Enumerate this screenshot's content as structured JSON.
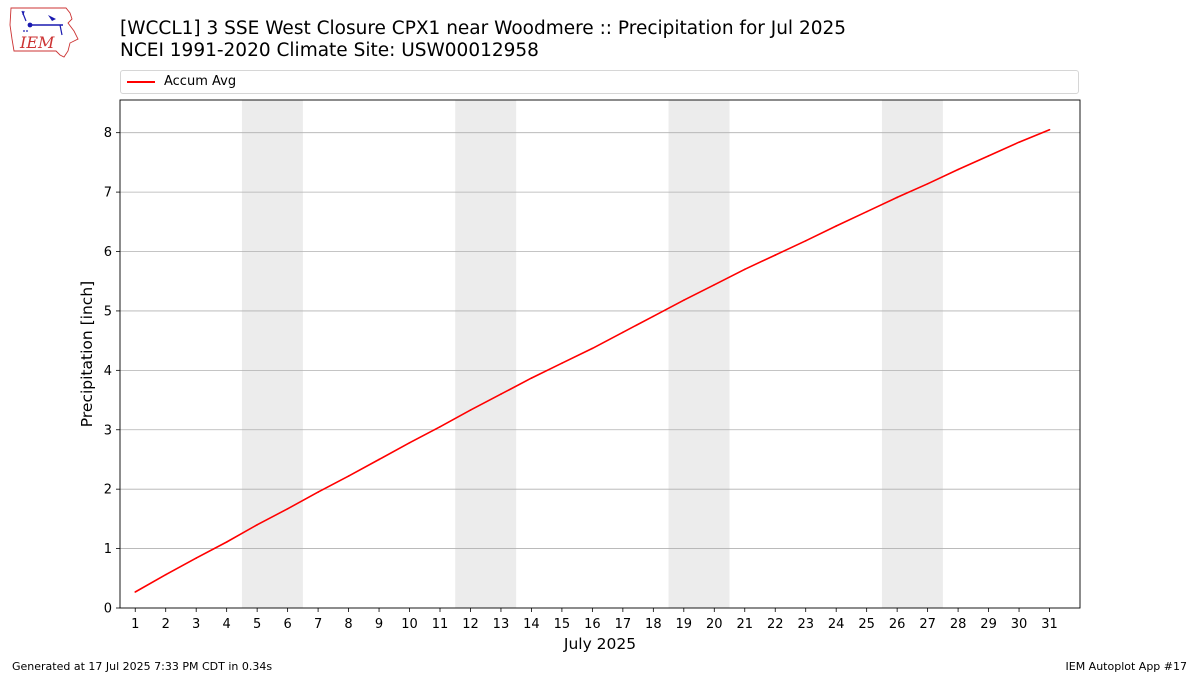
{
  "header": {
    "title_line1": "[WCCL1] 3 SSE West Closure CPX1 near Woodmere :: Precipitation for Jul 2025",
    "title_line2": "NCEI 1991-2020 Climate Site: USW00012958"
  },
  "logo": {
    "text": "IEM"
  },
  "footer": {
    "generated": "Generated at 17 Jul 2025 7:33 PM CDT in 0.34s",
    "app": "IEM Autoplot App #17"
  },
  "colors": {
    "series": "#ff0000",
    "weekend": "#ececec",
    "grid": "#b0b0b0",
    "logo": "#cc3333"
  },
  "chart_data": {
    "type": "line",
    "xlabel": "July 2025",
    "ylabel": "Precipitation [inch]",
    "xlim": [
      0.5,
      32.0
    ],
    "ylim": [
      0,
      8.55
    ],
    "yticks": [
      0,
      1,
      2,
      3,
      4,
      5,
      6,
      7,
      8
    ],
    "xticks": [
      1,
      2,
      3,
      4,
      5,
      6,
      7,
      8,
      9,
      10,
      11,
      12,
      13,
      14,
      15,
      16,
      17,
      18,
      19,
      20,
      21,
      22,
      23,
      24,
      25,
      26,
      27,
      28,
      29,
      30,
      31
    ],
    "grid": "y",
    "legend": "top",
    "weekend_spans": [
      [
        4.5,
        6.5
      ],
      [
        11.5,
        13.5
      ],
      [
        18.5,
        20.5
      ],
      [
        25.5,
        27.5
      ]
    ],
    "series": [
      {
        "name": "Accum Avg",
        "x": [
          1,
          2,
          3,
          4,
          5,
          6,
          7,
          8,
          9,
          10,
          11,
          12,
          13,
          14,
          15,
          16,
          17,
          18,
          19,
          20,
          21,
          22,
          23,
          24,
          25,
          26,
          27,
          28,
          29,
          30,
          31
        ],
        "values": [
          0.27,
          0.56,
          0.84,
          1.11,
          1.4,
          1.67,
          1.95,
          2.22,
          2.5,
          2.78,
          3.05,
          3.33,
          3.6,
          3.87,
          4.12,
          4.37,
          4.64,
          4.91,
          5.18,
          5.44,
          5.7,
          5.94,
          6.18,
          6.43,
          6.67,
          6.91,
          7.14,
          7.38,
          7.61,
          7.84,
          8.05
        ]
      }
    ]
  }
}
